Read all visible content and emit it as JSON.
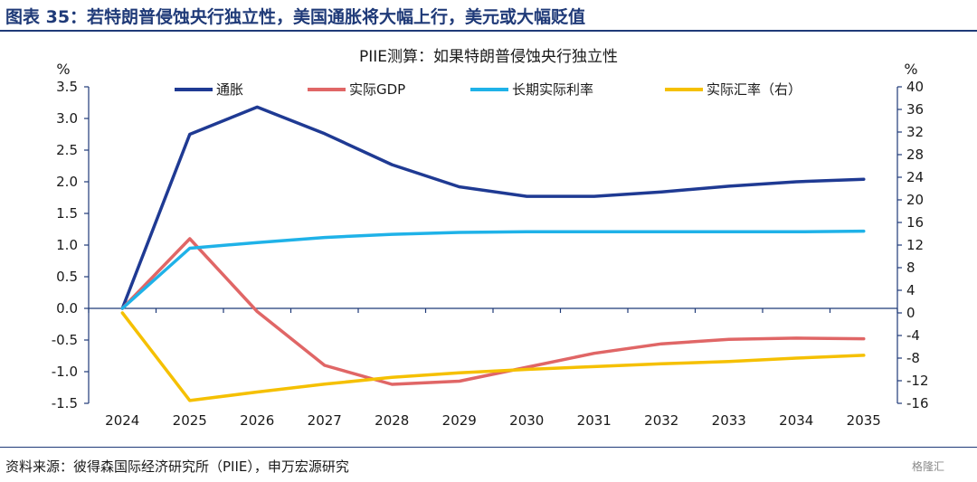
{
  "header": {
    "figure_title": "图表 35：若特朗普侵蚀央行独立性，美国通胀将大幅上行，美元或大幅贬值"
  },
  "footer": {
    "source": "资料来源：彼得森国际经济研究所（PIIE），申万宏源研究",
    "watermark": "格隆汇"
  },
  "colors": {
    "navy": "#1f3a93",
    "red": "#e06666",
    "cyan": "#1fb2e8",
    "yellow": "#f5c000",
    "axis": "#1f3a78"
  },
  "chart_data": {
    "type": "line",
    "title": "PIIE测算：如果特朗普侵蚀央行独立性",
    "ylabel_left": "%",
    "ylabel_right": "%",
    "ylim_left": [
      -1.5,
      3.5
    ],
    "ylim_right": [
      -16,
      40
    ],
    "yticks_left": [
      "3.5",
      "3.0",
      "2.5",
      "2.0",
      "1.5",
      "1.0",
      "0.5",
      "0.0",
      "-0.5",
      "-1.0",
      "-1.5"
    ],
    "yticks_right": [
      "40",
      "36",
      "32",
      "28",
      "24",
      "20",
      "16",
      "12",
      "8",
      "4",
      "0",
      "-4",
      "-8",
      "-12",
      "-16"
    ],
    "categories": [
      "2024",
      "2025",
      "2026",
      "2027",
      "2028",
      "2029",
      "2030",
      "2031",
      "2032",
      "2033",
      "2034",
      "2035"
    ],
    "series": [
      {
        "name": "通胀",
        "axis": "left",
        "color": "#1f3a93",
        "values": [
          0,
          2.75,
          3.18,
          2.76,
          2.27,
          1.92,
          1.77,
          1.77,
          1.84,
          1.93,
          2.0,
          2.04
        ]
      },
      {
        "name": "实际GDP",
        "axis": "left",
        "color": "#e06666",
        "values": [
          0,
          1.1,
          -0.05,
          -0.9,
          -1.2,
          -1.15,
          -0.93,
          -0.71,
          -0.56,
          -0.49,
          -0.47,
          -0.48
        ]
      },
      {
        "name": "长期实际利率",
        "axis": "left",
        "color": "#1fb2e8",
        "values": [
          0,
          0.95,
          1.04,
          1.12,
          1.17,
          1.2,
          1.21,
          1.21,
          1.21,
          1.21,
          1.21,
          1.22
        ]
      },
      {
        "name": "实际汇率（右）",
        "axis": "right",
        "color": "#f5c000",
        "values": [
          0,
          -15.5,
          -14.0,
          -12.6,
          -11.4,
          -10.6,
          -10.0,
          -9.5,
          -9.0,
          -8.6,
          -8.0,
          -7.5
        ]
      }
    ]
  }
}
